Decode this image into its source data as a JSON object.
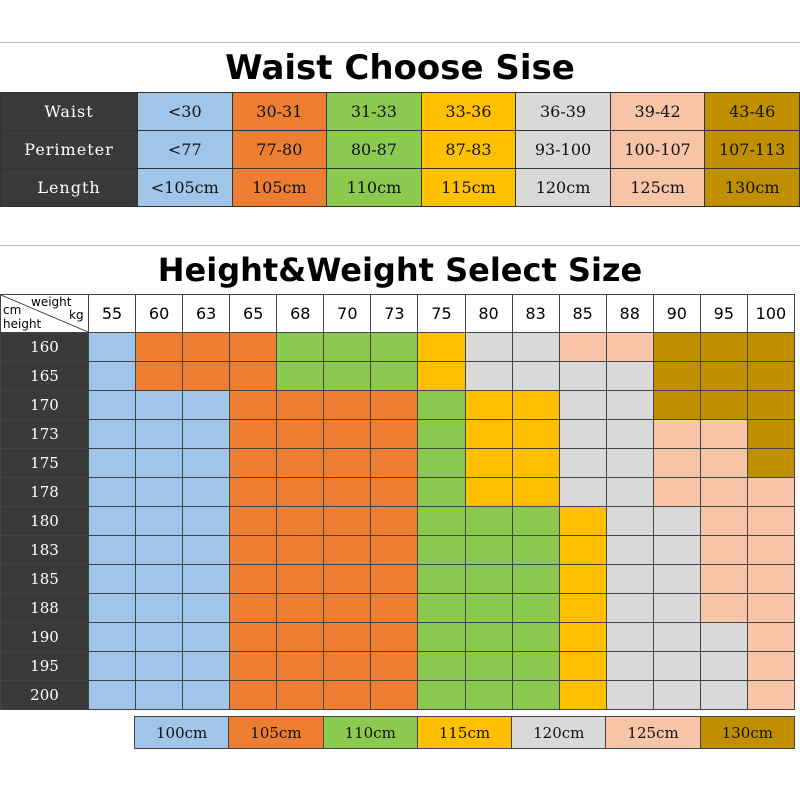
{
  "colors": {
    "blue": "#9fc5e8",
    "orange": "#ed7d31",
    "green": "#8cc94f",
    "yellow": "#ffc000",
    "gray": "#d9d9d9",
    "peach": "#f8c5a8",
    "gold": "#bf8f00",
    "dark": "#3a3a3a"
  },
  "waist": {
    "title": "Waist Choose Sise",
    "column_colors": [
      "blue",
      "orange",
      "green",
      "yellow",
      "gray",
      "peach",
      "gold"
    ],
    "rows": [
      {
        "label": "Waist",
        "cells": [
          "<30",
          "30-31",
          "31-33",
          "33-36",
          "36-39",
          "39-42",
          "43-46"
        ]
      },
      {
        "label": "Perimeter",
        "cells": [
          "<77",
          "77-80",
          "80-87",
          "87-83",
          "93-100",
          "100-107",
          "107-113"
        ]
      },
      {
        "label": "Length",
        "cells": [
          "<105cm",
          "105cm",
          "110cm",
          "115cm",
          "120cm",
          "125cm",
          "130cm"
        ]
      }
    ]
  },
  "height_weight": {
    "title": "Height&Weight Select Size",
    "corner": {
      "weight": "weight",
      "kg": "kg",
      "cm": "cm",
      "height": "height"
    },
    "weights": [
      "55",
      "60",
      "63",
      "65",
      "68",
      "70",
      "73",
      "75",
      "80",
      "83",
      "85",
      "88",
      "90",
      "95",
      "100"
    ],
    "rows": [
      {
        "height": "160",
        "colors": [
          "blue",
          "orange",
          "orange",
          "orange",
          "green",
          "green",
          "green",
          "yellow",
          "gray",
          "gray",
          "peach",
          "peach",
          "gold",
          "gold",
          "gold"
        ]
      },
      {
        "height": "165",
        "colors": [
          "blue",
          "orange",
          "orange",
          "orange",
          "green",
          "green",
          "green",
          "yellow",
          "gray",
          "gray",
          "gray",
          "gray",
          "gold",
          "gold",
          "gold"
        ]
      },
      {
        "height": "170",
        "colors": [
          "blue",
          "blue",
          "blue",
          "orange",
          "orange",
          "orange",
          "orange",
          "green",
          "yellow",
          "yellow",
          "gray",
          "gray",
          "gold",
          "gold",
          "gold"
        ]
      },
      {
        "height": "173",
        "colors": [
          "blue",
          "blue",
          "blue",
          "orange",
          "orange",
          "orange",
          "orange",
          "green",
          "yellow",
          "yellow",
          "gray",
          "gray",
          "peach",
          "peach",
          "gold"
        ]
      },
      {
        "height": "175",
        "colors": [
          "blue",
          "blue",
          "blue",
          "orange",
          "orange",
          "orange",
          "orange",
          "green",
          "yellow",
          "yellow",
          "gray",
          "gray",
          "peach",
          "peach",
          "gold"
        ]
      },
      {
        "height": "178",
        "colors": [
          "blue",
          "blue",
          "blue",
          "orange",
          "orange",
          "orange",
          "orange",
          "green",
          "yellow",
          "yellow",
          "gray",
          "gray",
          "peach",
          "peach",
          "peach"
        ]
      },
      {
        "height": "180",
        "colors": [
          "blue",
          "blue",
          "blue",
          "orange",
          "orange",
          "orange",
          "orange",
          "green",
          "green",
          "green",
          "yellow",
          "gray",
          "gray",
          "peach",
          "peach"
        ]
      },
      {
        "height": "183",
        "colors": [
          "blue",
          "blue",
          "blue",
          "orange",
          "orange",
          "orange",
          "orange",
          "green",
          "green",
          "green",
          "yellow",
          "gray",
          "gray",
          "peach",
          "peach"
        ]
      },
      {
        "height": "185",
        "colors": [
          "blue",
          "blue",
          "blue",
          "orange",
          "orange",
          "orange",
          "orange",
          "green",
          "green",
          "green",
          "yellow",
          "gray",
          "gray",
          "peach",
          "peach"
        ]
      },
      {
        "height": "188",
        "colors": [
          "blue",
          "blue",
          "blue",
          "orange",
          "orange",
          "orange",
          "orange",
          "green",
          "green",
          "green",
          "yellow",
          "gray",
          "gray",
          "peach",
          "peach"
        ]
      },
      {
        "height": "190",
        "colors": [
          "blue",
          "blue",
          "blue",
          "orange",
          "orange",
          "orange",
          "orange",
          "green",
          "green",
          "green",
          "yellow",
          "gray",
          "gray",
          "gray",
          "peach"
        ]
      },
      {
        "height": "195",
        "colors": [
          "blue",
          "blue",
          "blue",
          "orange",
          "orange",
          "orange",
          "orange",
          "green",
          "green",
          "green",
          "yellow",
          "gray",
          "gray",
          "gray",
          "peach"
        ]
      },
      {
        "height": "200",
        "colors": [
          "blue",
          "blue",
          "blue",
          "orange",
          "orange",
          "orange",
          "orange",
          "green",
          "green",
          "green",
          "yellow",
          "gray",
          "gray",
          "gray",
          "peach"
        ]
      }
    ]
  },
  "legend": {
    "items": [
      {
        "label": "100cm",
        "color": "blue"
      },
      {
        "label": "105cm",
        "color": "orange"
      },
      {
        "label": "110cm",
        "color": "green"
      },
      {
        "label": "115cm",
        "color": "yellow"
      },
      {
        "label": "120cm",
        "color": "gray"
      },
      {
        "label": "125cm",
        "color": "peach"
      },
      {
        "label": "130cm",
        "color": "gold"
      }
    ]
  }
}
